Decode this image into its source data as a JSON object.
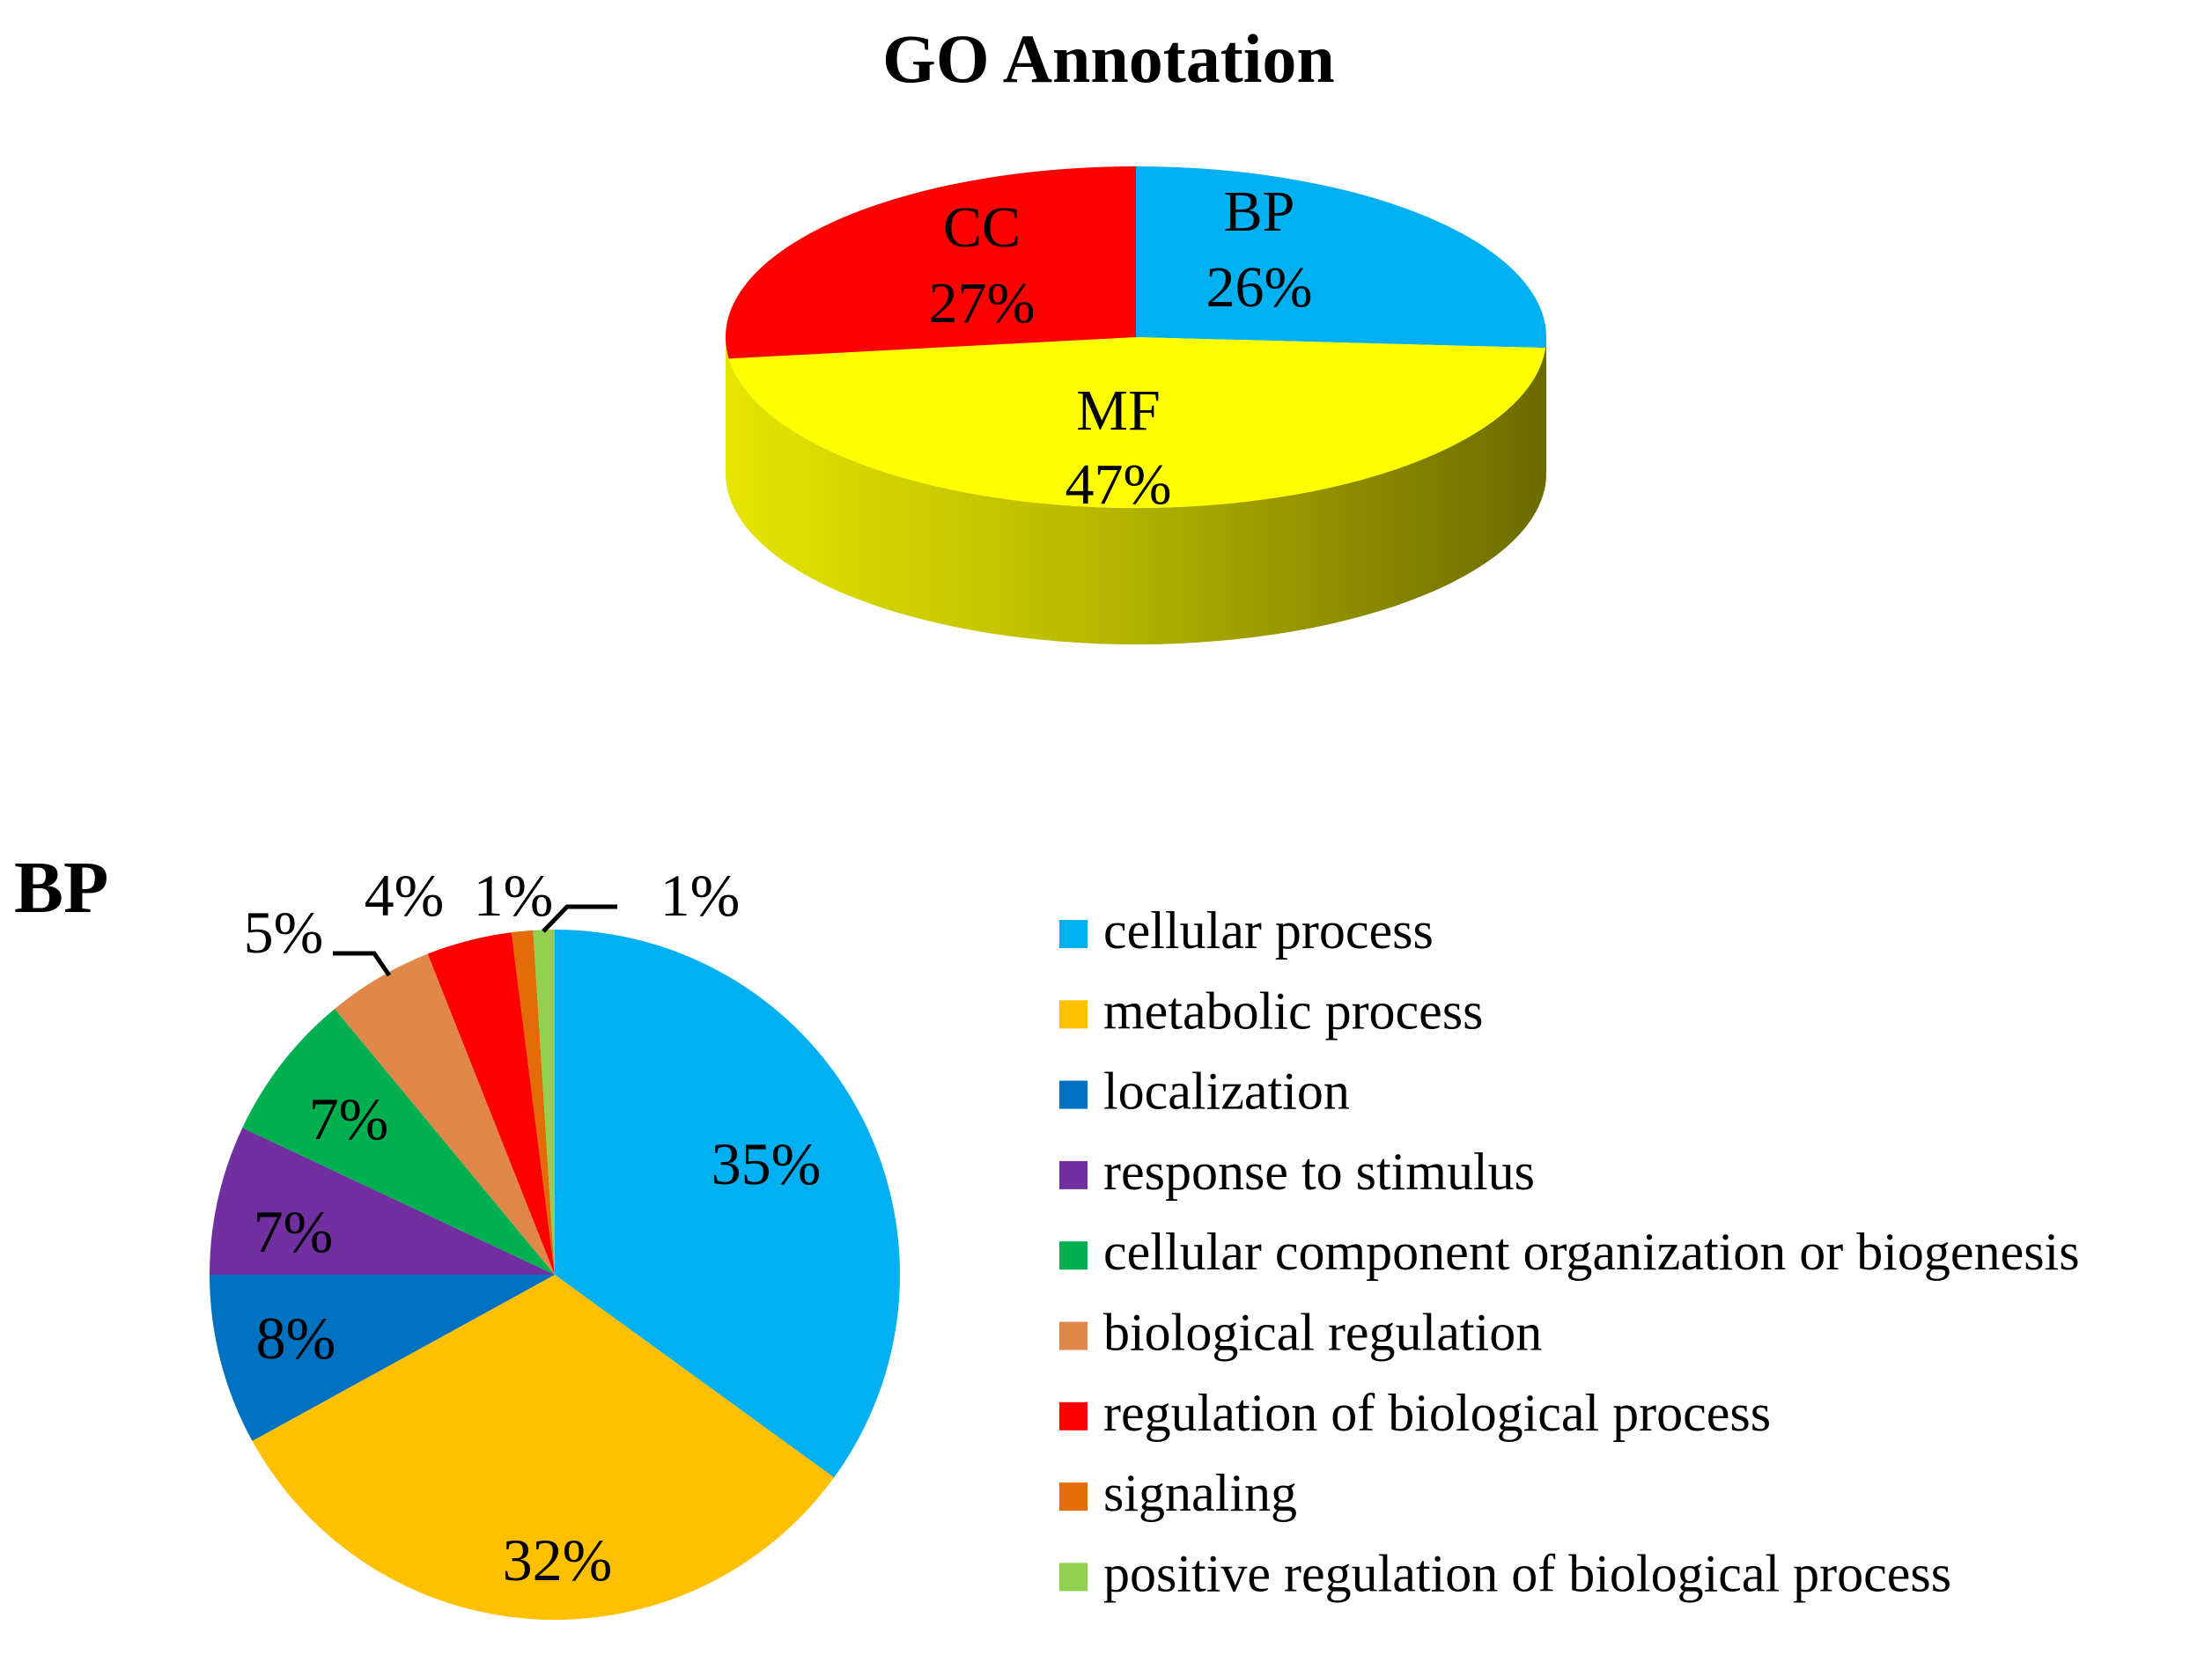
{
  "chart_data": [
    {
      "type": "pie",
      "style": "3d",
      "title": "GO Annotation",
      "slices": [
        {
          "name": "BP",
          "value": 26,
          "label": "26%",
          "color": "#00B0F0"
        },
        {
          "name": "MF",
          "value": 47,
          "label": "47%",
          "color": "#FFFF00"
        },
        {
          "name": "CC",
          "value": 27,
          "label": "27%",
          "color": "#FF0000"
        }
      ]
    },
    {
      "type": "pie",
      "title": "BP",
      "slices": [
        {
          "name": "cellular process",
          "value": 35,
          "label": "35%",
          "color": "#00B0F0"
        },
        {
          "name": "metabolic process",
          "value": 32,
          "label": "32%",
          "color": "#FFC000"
        },
        {
          "name": "localization",
          "value": 8,
          "label": "8%",
          "color": "#0070C0"
        },
        {
          "name": "response to stimulus",
          "value": 7,
          "label": "7%",
          "color": "#7030A0"
        },
        {
          "name": "cellular component organization or biogenesis",
          "value": 7,
          "label": "7%",
          "color": "#00B050"
        },
        {
          "name": "biological regulation",
          "value": 5,
          "label": "5%",
          "color": "#E0874A"
        },
        {
          "name": "regulation of biological process",
          "value": 4,
          "label": "4%",
          "color": "#FF0000"
        },
        {
          "name": "signaling",
          "value": 1,
          "label": "1%",
          "color": "#E36C09"
        },
        {
          "name": "positive regulation of biological process",
          "value": 1,
          "label": "1%",
          "color": "#92D050"
        }
      ],
      "legend_position": "right"
    }
  ]
}
